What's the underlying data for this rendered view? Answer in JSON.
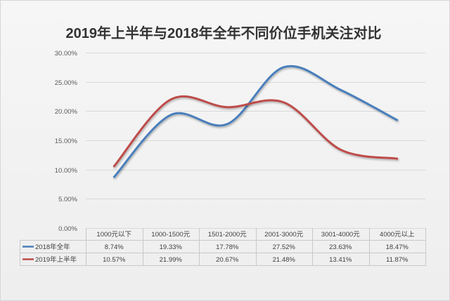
{
  "chart_data": {
    "type": "line",
    "title": "2019年上半年与2018年全年不同价位手机关注对比",
    "categories": [
      "1000元以下",
      "1000-1500元",
      "1501-2000元",
      "2001-3000元",
      "3001-4000元",
      "4000元以上"
    ],
    "series": [
      {
        "name": "2018年全年",
        "values": [
          8.74,
          19.33,
          17.78,
          27.52,
          23.63,
          18.47
        ],
        "labels": [
          "8.74%",
          "19.33%",
          "17.78%",
          "27.52%",
          "23.63%",
          "18.47%"
        ],
        "color": "#4a7ebb"
      },
      {
        "name": "2019年上半年",
        "values": [
          10.57,
          21.99,
          20.67,
          21.48,
          13.41,
          11.87
        ],
        "labels": [
          "10.57%",
          "21.99%",
          "20.67%",
          "21.48%",
          "13.41%",
          "11.87%"
        ],
        "color": "#be4b48"
      }
    ],
    "ylim": [
      0,
      30
    ],
    "yticks": [
      0,
      5,
      10,
      15,
      20,
      25,
      30
    ],
    "ytick_labels": [
      "0.00%",
      "5.00%",
      "10.00%",
      "15.00%",
      "20.00%",
      "25.00%",
      "30.00%"
    ],
    "grid": true,
    "smooth": true,
    "legend": "data-table"
  }
}
